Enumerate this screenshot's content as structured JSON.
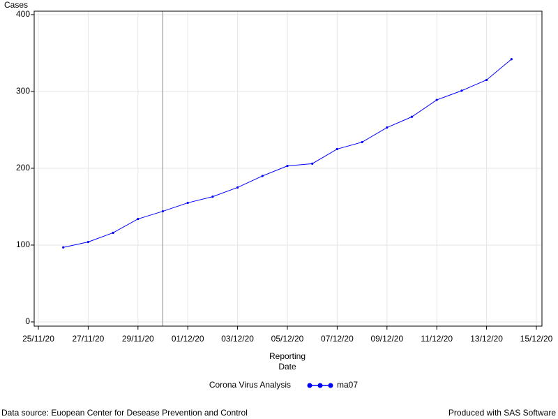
{
  "chart_data": {
    "type": "line",
    "ylabel": "Cases",
    "xlabel": [
      "Reporting",
      "Date"
    ],
    "legend_title": "Corona Virus Analysis",
    "footnote_left": "Data source: Euopean Center for Desease Prevention and Control",
    "footnote_right": "Produced with SAS Software",
    "x": [
      "2020-11-26",
      "2020-11-27",
      "2020-11-28",
      "2020-11-29",
      "2020-11-30",
      "2020-12-01",
      "2020-12-02",
      "2020-12-03",
      "2020-12-04",
      "2020-12-05",
      "2020-12-06",
      "2020-12-07",
      "2020-12-08",
      "2020-12-09",
      "2020-12-10",
      "2020-12-11",
      "2020-12-12",
      "2020-12-13",
      "2020-12-14"
    ],
    "series": [
      {
        "name": "ma07",
        "color": "#0000ff",
        "values": [
          97,
          104,
          116,
          134,
          144,
          155,
          163,
          175,
          190,
          203,
          206,
          225,
          234,
          253,
          267,
          289,
          301,
          315,
          342
        ]
      }
    ],
    "reference_line": "2020-11-30",
    "xlim": [
      "2020-11-25",
      "2020-12-15"
    ],
    "xticks": [
      {
        "value": "2020-11-25",
        "label": "25/11/20"
      },
      {
        "value": "2020-11-27",
        "label": "27/11/20"
      },
      {
        "value": "2020-11-29",
        "label": "29/11/20"
      },
      {
        "value": "2020-12-01",
        "label": "01/12/20"
      },
      {
        "value": "2020-12-03",
        "label": "03/12/20"
      },
      {
        "value": "2020-12-05",
        "label": "05/12/20"
      },
      {
        "value": "2020-12-07",
        "label": "07/12/20"
      },
      {
        "value": "2020-12-09",
        "label": "09/12/20"
      },
      {
        "value": "2020-12-11",
        "label": "11/12/20"
      },
      {
        "value": "2020-12-13",
        "label": "13/12/20"
      },
      {
        "value": "2020-12-15",
        "label": "15/12/20"
      }
    ],
    "ylim": [
      -5.5,
      404.5
    ],
    "yticks": [
      0,
      100,
      200,
      300,
      400
    ],
    "grid": true
  }
}
